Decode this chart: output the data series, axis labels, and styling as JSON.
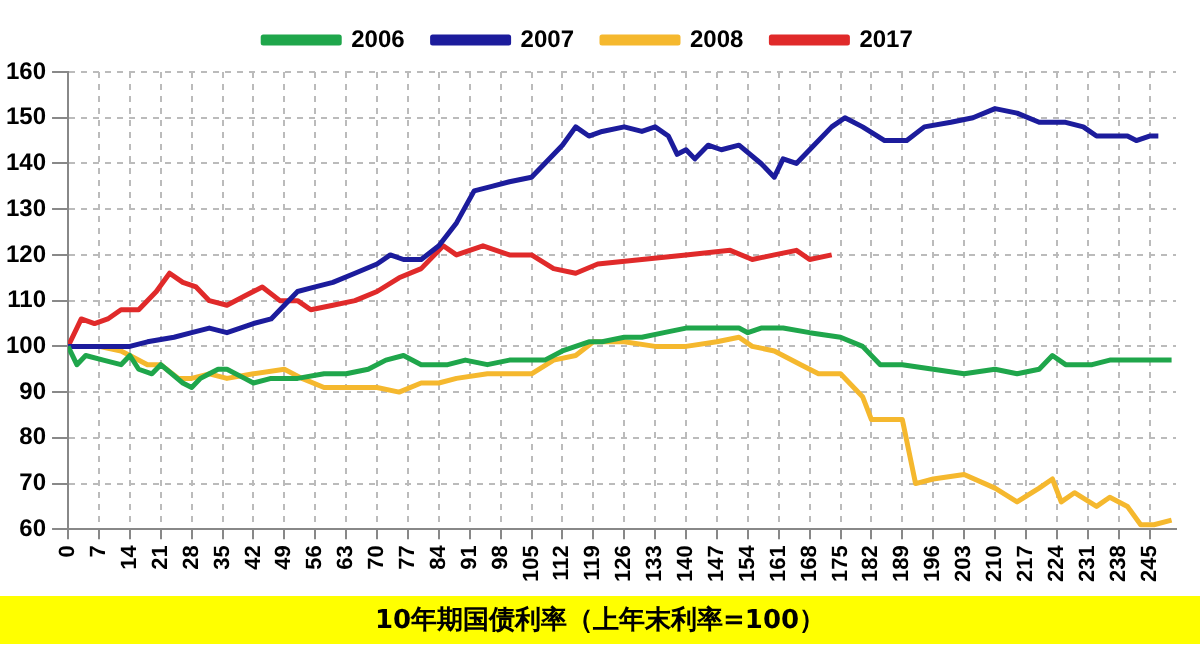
{
  "chart_data": {
    "type": "line",
    "title": "10年期国债利率（上年末利率=100）",
    "legend": "top",
    "grid": true,
    "line_style": "solid",
    "marker": "none",
    "xlim": [
      0,
      251
    ],
    "xticks": [
      0,
      7,
      14,
      21,
      28,
      35,
      42,
      49,
      56,
      63,
      70,
      77,
      84,
      91,
      98,
      105,
      112,
      119,
      126,
      133,
      140,
      147,
      154,
      161,
      168,
      175,
      182,
      189,
      196,
      203,
      210,
      217,
      224,
      231,
      238,
      245
    ],
    "ylim": [
      60,
      160
    ],
    "yticks": [
      60,
      70,
      80,
      90,
      100,
      110,
      120,
      130,
      140,
      150,
      160
    ],
    "series": [
      {
        "name": "2006",
        "color": "#1fa64b",
        "x": [
          0,
          2,
          4,
          8,
          12,
          14,
          16,
          19,
          21,
          26,
          28,
          30,
          32,
          34,
          36,
          40,
          42,
          46,
          52,
          58,
          63,
          68,
          72,
          76,
          80,
          86,
          90,
          95,
          100,
          105,
          108,
          112,
          118,
          121,
          126,
          130,
          135,
          140,
          147,
          152,
          154,
          157,
          162,
          168,
          175,
          180,
          184,
          189,
          196,
          203,
          210,
          215,
          220,
          223,
          226,
          232,
          236,
          245,
          250
        ],
        "values": [
          100,
          96,
          98,
          97,
          96,
          98,
          95,
          94,
          96,
          92,
          91,
          93,
          94,
          95,
          95,
          93,
          92,
          93,
          93,
          94,
          94,
          95,
          97,
          98,
          96,
          96,
          97,
          96,
          97,
          97,
          97,
          99,
          101,
          101,
          102,
          102,
          103,
          104,
          104,
          104,
          103,
          104,
          104,
          103,
          102,
          100,
          96,
          96,
          95,
          94,
          95,
          94,
          95,
          98,
          96,
          96,
          97,
          97,
          97
        ]
      },
      {
        "name": "2007",
        "color": "#1c1c9c",
        "x": [
          0,
          7,
          14,
          18,
          24,
          28,
          32,
          36,
          42,
          46,
          49,
          52,
          56,
          60,
          65,
          70,
          73,
          76,
          80,
          84,
          88,
          92,
          96,
          100,
          105,
          108,
          112,
          115,
          118,
          121,
          126,
          130,
          133,
          136,
          138,
          140,
          142,
          145,
          148,
          152,
          157,
          160,
          162,
          165,
          168,
          173,
          176,
          180,
          185,
          190,
          194,
          200,
          205,
          210,
          215,
          220,
          226,
          230,
          233,
          240,
          242,
          245,
          247
        ],
        "values": [
          100,
          100,
          100,
          101,
          102,
          103,
          104,
          103,
          105,
          106,
          109,
          112,
          113,
          114,
          116,
          118,
          120,
          119,
          119,
          122,
          127,
          134,
          135,
          136,
          137,
          140,
          144,
          148,
          146,
          147,
          148,
          147,
          148,
          146,
          142,
          143,
          141,
          144,
          143,
          144,
          140,
          137,
          141,
          140,
          143,
          148,
          150,
          148,
          145,
          145,
          148,
          149,
          150,
          152,
          151,
          149,
          149,
          148,
          146,
          146,
          145,
          146,
          146
        ]
      },
      {
        "name": "2008",
        "color": "#f5b82e",
        "x": [
          0,
          7,
          12,
          14,
          18,
          21,
          25,
          28,
          32,
          36,
          42,
          49,
          53,
          58,
          63,
          70,
          75,
          80,
          84,
          88,
          95,
          105,
          110,
          115,
          119,
          126,
          133,
          140,
          147,
          152,
          155,
          160,
          166,
          170,
          175,
          180,
          182,
          189,
          192,
          196,
          203,
          210,
          215,
          220,
          223,
          225,
          228,
          233,
          236,
          240,
          243,
          246,
          250
        ],
        "values": [
          100,
          100,
          99,
          98,
          96,
          96,
          93,
          93,
          94,
          93,
          94,
          95,
          93,
          91,
          91,
          91,
          90,
          92,
          92,
          93,
          94,
          94,
          97,
          98,
          101,
          101,
          100,
          100,
          101,
          102,
          100,
          99,
          96,
          94,
          94,
          89,
          84,
          84,
          70,
          71,
          72,
          69,
          66,
          69,
          71,
          66,
          68,
          65,
          67,
          65,
          61,
          61,
          62
        ]
      },
      {
        "name": "2017",
        "color": "#e02a2a",
        "x": [
          0,
          3,
          6,
          9,
          12,
          16,
          20,
          23,
          26,
          29,
          32,
          36,
          40,
          44,
          48,
          52,
          55,
          60,
          65,
          70,
          75,
          80,
          85,
          88,
          94,
          100,
          105,
          110,
          115,
          120,
          130,
          140,
          150,
          155,
          160,
          165,
          168,
          173
        ],
        "values": [
          100,
          106,
          105,
          106,
          108,
          108,
          112,
          116,
          114,
          113,
          110,
          109,
          111,
          113,
          110,
          110,
          108,
          109,
          110,
          112,
          115,
          117,
          122,
          120,
          122,
          120,
          120,
          117,
          116,
          118,
          119,
          120,
          121,
          119,
          120,
          121,
          119,
          120
        ]
      }
    ]
  }
}
